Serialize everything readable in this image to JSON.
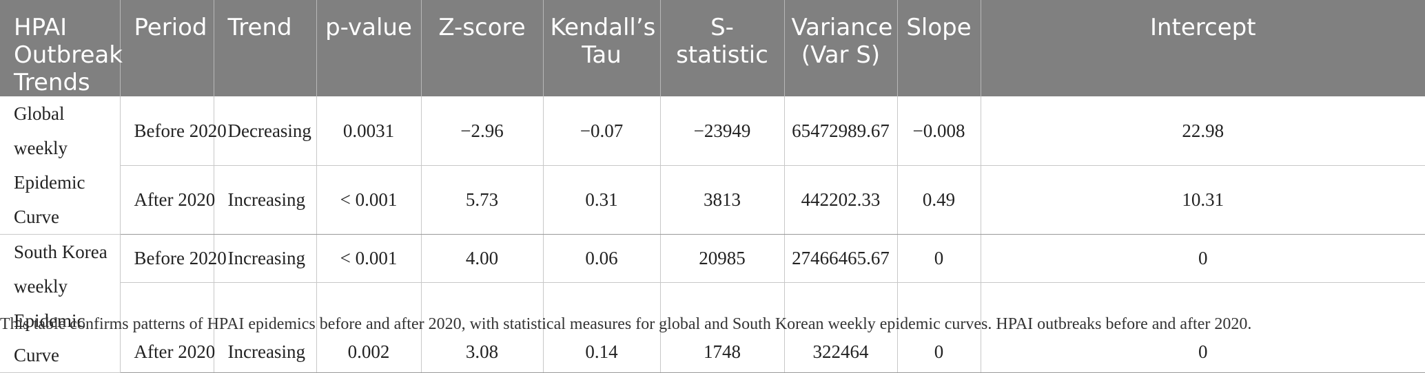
{
  "table": {
    "headers": [
      "HPAI Outbreak Trends",
      "Period",
      "Trend",
      "p-value",
      "Z-score",
      "Kendall’s Tau",
      "S-statistic",
      "Variance (Var S)",
      "Slope",
      "Intercept"
    ],
    "groups": [
      {
        "label_lines": [
          "Global weekly",
          "Epidemic Curve"
        ],
        "rows": [
          {
            "period": "Before 2020",
            "trend": "Decreasing",
            "p_value": "0.0031",
            "z_score": "−2.96",
            "kendall_tau": "−0.07",
            "s_statistic": "−23949",
            "variance": "65472989.67",
            "slope": "−0.008",
            "intercept": "22.98"
          },
          {
            "period": "After 2020",
            "trend": "Increasing",
            "p_value": "< 0.001",
            "z_score": "5.73",
            "kendall_tau": "0.31",
            "s_statistic": "3813",
            "variance": "442202.33",
            "slope": "0.49",
            "intercept": "10.31"
          }
        ]
      },
      {
        "label_lines": [
          "South Korea",
          "weekly",
          "Epidemic Curve"
        ],
        "rows": [
          {
            "period": "Before 2020",
            "trend": "Increasing",
            "p_value": "< 0.001",
            "z_score": "4.00",
            "kendall_tau": "0.06",
            "s_statistic": "20985",
            "variance": "27466465.67",
            "slope": "0",
            "intercept": "0"
          },
          {
            "period": "After 2020",
            "trend": "Increasing",
            "p_value": "0.002",
            "z_score": "3.08",
            "kendall_tau": "0.14",
            "s_statistic": "1748",
            "variance": "322464",
            "slope": "0",
            "intercept": "0"
          }
        ]
      }
    ]
  },
  "caption": "This table confirms patterns of HPAI epidemics before and after 2020, with statistical measures for global and South Korean weekly epidemic curves. HPAI outbreaks before and after 2020.",
  "colors": {
    "header_bg": "#808080",
    "header_text": "#ffffff",
    "grid": "#c8c8c8"
  }
}
